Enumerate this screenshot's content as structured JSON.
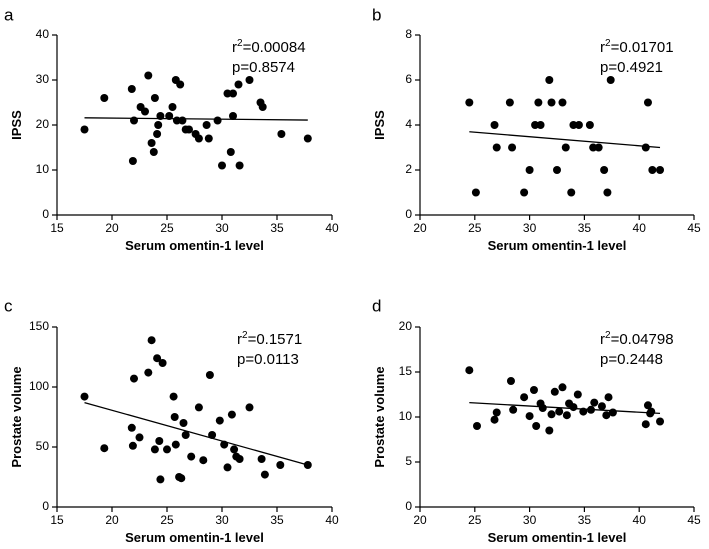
{
  "chart_data": [
    {
      "type": "scatter",
      "panel_label": "a",
      "xlabel": "Serum omentin-1 level",
      "ylabel": "IPSS",
      "xlim": [
        15,
        40
      ],
      "ylim": [
        0,
        40
      ],
      "xticks": [
        15,
        20,
        25,
        30,
        35,
        40
      ],
      "yticks": [
        0,
        10,
        20,
        30,
        40
      ],
      "annotation": {
        "r2_prefix": "r",
        "r2_sup": "2",
        "r2_value": "=0.00084",
        "p": "p=0.8574"
      },
      "points": [
        [
          17.5,
          19
        ],
        [
          19.3,
          26
        ],
        [
          21.8,
          28
        ],
        [
          22,
          21
        ],
        [
          21.9,
          12
        ],
        [
          22.6,
          24
        ],
        [
          23,
          23
        ],
        [
          23.3,
          31
        ],
        [
          23.6,
          16
        ],
        [
          23.8,
          14
        ],
        [
          23.9,
          26
        ],
        [
          24.1,
          18
        ],
        [
          24.2,
          20
        ],
        [
          24.4,
          22
        ],
        [
          25.2,
          22
        ],
        [
          25.5,
          24
        ],
        [
          25.8,
          30
        ],
        [
          25.9,
          21
        ],
        [
          26.2,
          29
        ],
        [
          26.4,
          21
        ],
        [
          26.7,
          19
        ],
        [
          27,
          19
        ],
        [
          27.6,
          18
        ],
        [
          27.9,
          17
        ],
        [
          28.6,
          20
        ],
        [
          28.8,
          17
        ],
        [
          29.6,
          21
        ],
        [
          30,
          11
        ],
        [
          30.5,
          27
        ],
        [
          30.8,
          14
        ],
        [
          31,
          22
        ],
        [
          31,
          27
        ],
        [
          31.5,
          29
        ],
        [
          31.6,
          11
        ],
        [
          32.5,
          30
        ],
        [
          33.5,
          25
        ],
        [
          33.7,
          24
        ],
        [
          35.4,
          18
        ],
        [
          37.8,
          17
        ]
      ],
      "fit_line": {
        "x": [
          17.5,
          37.8
        ],
        "y": [
          21.6,
          21.1
        ]
      }
    },
    {
      "type": "scatter",
      "panel_label": "b",
      "xlabel": "Serum omentin-1 level",
      "ylabel": "IPSS",
      "xlim": [
        20,
        45
      ],
      "ylim": [
        0,
        8
      ],
      "xticks": [
        20,
        25,
        30,
        35,
        40,
        45
      ],
      "yticks": [
        0,
        2,
        4,
        6,
        8
      ],
      "annotation": {
        "r2_prefix": "r",
        "r2_sup": "2",
        "r2_value": "=0.01701",
        "p": "p=0.4921"
      },
      "points": [
        [
          24.5,
          5
        ],
        [
          25.1,
          1
        ],
        [
          26.8,
          4
        ],
        [
          27,
          3
        ],
        [
          28.2,
          5
        ],
        [
          28.4,
          3
        ],
        [
          29.5,
          1
        ],
        [
          30,
          2
        ],
        [
          30.5,
          4
        ],
        [
          30.8,
          5
        ],
        [
          31,
          4
        ],
        [
          31.8,
          6
        ],
        [
          32,
          5
        ],
        [
          32.5,
          2
        ],
        [
          33,
          5
        ],
        [
          33.3,
          3
        ],
        [
          33.8,
          1
        ],
        [
          34,
          4
        ],
        [
          34.5,
          4
        ],
        [
          35.5,
          4
        ],
        [
          35.8,
          3
        ],
        [
          36.3,
          3
        ],
        [
          36.8,
          2
        ],
        [
          37.1,
          1
        ],
        [
          37.4,
          6
        ],
        [
          40.6,
          3
        ],
        [
          40.8,
          5
        ],
        [
          41.2,
          2
        ],
        [
          41.9,
          2
        ]
      ],
      "fit_line": {
        "x": [
          24.5,
          41.9
        ],
        "y": [
          3.7,
          3.0
        ]
      }
    },
    {
      "type": "scatter",
      "panel_label": "c",
      "xlabel": "Serum omentin-1 level",
      "ylabel": "Prostate volume",
      "xlim": [
        15,
        40
      ],
      "ylim": [
        0,
        150
      ],
      "xticks": [
        15,
        20,
        25,
        30,
        35,
        40
      ],
      "yticks": [
        0,
        50,
        100,
        150
      ],
      "annotation": {
        "r2_prefix": "r",
        "r2_sup": "2",
        "r2_value": "=0.1571",
        "p": "p=0.0113"
      },
      "points": [
        [
          17.5,
          92
        ],
        [
          19.3,
          49
        ],
        [
          21.8,
          66
        ],
        [
          22,
          107
        ],
        [
          21.9,
          51
        ],
        [
          22.5,
          58
        ],
        [
          23.3,
          112
        ],
        [
          23.6,
          139
        ],
        [
          23.9,
          48
        ],
        [
          24.1,
          124
        ],
        [
          24.3,
          55
        ],
        [
          24.4,
          23
        ],
        [
          24.6,
          120
        ],
        [
          25,
          48
        ],
        [
          25.6,
          92
        ],
        [
          25.7,
          75
        ],
        [
          25.8,
          52
        ],
        [
          26.1,
          25
        ],
        [
          26.3,
          24
        ],
        [
          26.5,
          70
        ],
        [
          26.7,
          60
        ],
        [
          27.2,
          42
        ],
        [
          27.9,
          83
        ],
        [
          28.3,
          39
        ],
        [
          28.9,
          110
        ],
        [
          29.1,
          60
        ],
        [
          29.8,
          72
        ],
        [
          30.2,
          52
        ],
        [
          30.5,
          33
        ],
        [
          30.9,
          77
        ],
        [
          31.1,
          48
        ],
        [
          31.3,
          42
        ],
        [
          31.6,
          40
        ],
        [
          32.5,
          83
        ],
        [
          33.6,
          40
        ],
        [
          33.9,
          27
        ],
        [
          35.3,
          35
        ],
        [
          37.8,
          35
        ]
      ],
      "fit_line": {
        "x": [
          17.5,
          37.8
        ],
        "y": [
          87,
          35
        ]
      }
    },
    {
      "type": "scatter",
      "panel_label": "d",
      "xlabel": "Serum omentin-1 level",
      "ylabel": "Prostate volume",
      "xlim": [
        20,
        45
      ],
      "ylim": [
        0,
        20
      ],
      "xticks": [
        20,
        25,
        30,
        35,
        40,
        45
      ],
      "yticks": [
        0,
        5,
        10,
        15,
        20
      ],
      "annotation": {
        "r2_prefix": "r",
        "r2_sup": "2",
        "r2_value": "=0.04798",
        "p": "p=0.2448"
      },
      "points": [
        [
          24.5,
          15.2
        ],
        [
          25.2,
          9
        ],
        [
          26.8,
          9.7
        ],
        [
          27,
          10.5
        ],
        [
          28.3,
          14
        ],
        [
          28.5,
          10.8
        ],
        [
          29.5,
          12.2
        ],
        [
          30,
          10.1
        ],
        [
          30.4,
          13
        ],
        [
          30.6,
          9
        ],
        [
          31,
          11.5
        ],
        [
          31.2,
          11
        ],
        [
          31.8,
          8.5
        ],
        [
          32,
          10.3
        ],
        [
          32.3,
          12.8
        ],
        [
          32.7,
          10.6
        ],
        [
          33,
          13.3
        ],
        [
          33.4,
          10.2
        ],
        [
          33.6,
          11.5
        ],
        [
          34,
          11.1
        ],
        [
          34.4,
          12.5
        ],
        [
          34.9,
          10.6
        ],
        [
          35.6,
          10.8
        ],
        [
          35.9,
          11.6
        ],
        [
          36.6,
          11.2
        ],
        [
          37,
          10.2
        ],
        [
          37.2,
          12.2
        ],
        [
          37.6,
          10.5
        ],
        [
          40.6,
          9.2
        ],
        [
          40.8,
          11.3
        ],
        [
          41,
          10.4
        ],
        [
          41.1,
          10.6
        ],
        [
          41.9,
          9.5
        ]
      ],
      "fit_line": {
        "x": [
          24.5,
          41.9
        ],
        "y": [
          11.6,
          10.4
        ]
      }
    }
  ]
}
